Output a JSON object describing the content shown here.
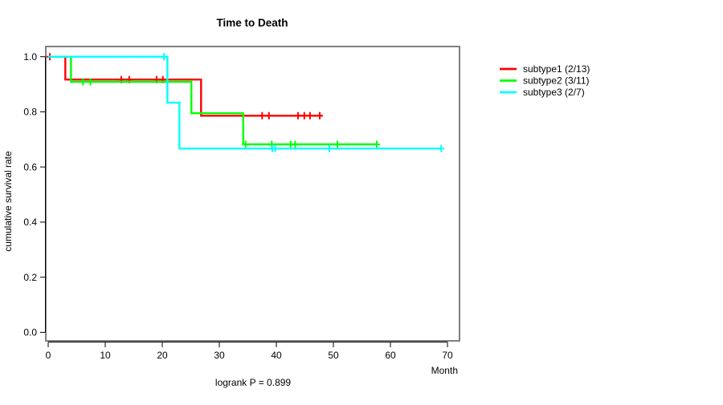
{
  "chart_data": {
    "type": "line",
    "subtype": "kaplan-meier-step",
    "title": "Time to Death",
    "ylabel": "cumulative survival rate",
    "xlabel": "Month",
    "annotation": "logrank P = 0.899",
    "xlim": [
      0,
      70
    ],
    "ylim": [
      0.0,
      1.0
    ],
    "x_ticks": [
      0,
      10,
      20,
      30,
      40,
      50,
      60,
      70
    ],
    "y_ticks": [
      0.0,
      0.2,
      0.4,
      0.6,
      0.8,
      1.0
    ],
    "grid": false,
    "legend_position": "right-outside-top",
    "box_color": "#808080",
    "axis_color": "#000000",
    "series": [
      {
        "name": "subtype1 (2/13)",
        "color": "#ff0000",
        "steps": [
          [
            0,
            1.0
          ],
          [
            3,
            1.0
          ],
          [
            3,
            0.917
          ],
          [
            26.8,
            0.917
          ],
          [
            26.8,
            0.786
          ],
          [
            48,
            0.786
          ]
        ],
        "censors": [
          [
            0.3,
            1.0
          ],
          [
            12.8,
            0.917
          ],
          [
            14.2,
            0.917
          ],
          [
            19.0,
            0.917
          ],
          [
            20.1,
            0.917
          ],
          [
            37.5,
            0.786
          ],
          [
            38.7,
            0.786
          ],
          [
            43.8,
            0.786
          ],
          [
            44.9,
            0.786
          ],
          [
            45.9,
            0.786
          ],
          [
            47.6,
            0.786
          ]
        ]
      },
      {
        "name": "subtype2 (3/11)",
        "color": "#00ff00",
        "steps": [
          [
            0,
            1.0
          ],
          [
            4,
            1.0
          ],
          [
            4,
            0.909
          ],
          [
            25.1,
            0.909
          ],
          [
            25.1,
            0.795
          ],
          [
            34.2,
            0.795
          ],
          [
            34.2,
            0.682
          ],
          [
            57.7,
            0.682
          ]
        ],
        "censors": [
          [
            6.1,
            0.909
          ],
          [
            7.4,
            0.909
          ],
          [
            34.6,
            0.682
          ],
          [
            39.2,
            0.682
          ],
          [
            42.5,
            0.682
          ],
          [
            43.3,
            0.682
          ],
          [
            50.7,
            0.682
          ],
          [
            57.6,
            0.682
          ]
        ]
      },
      {
        "name": "subtype3 (2/7)",
        "color": "#00ffff",
        "steps": [
          [
            0,
            1.0
          ],
          [
            20.9,
            1.0
          ],
          [
            20.9,
            0.833
          ],
          [
            23.0,
            0.833
          ],
          [
            23.0,
            0.667
          ],
          [
            68.9,
            0.667
          ]
        ],
        "censors": [
          [
            20.3,
            1.0
          ],
          [
            39.3,
            0.667
          ],
          [
            39.8,
            0.667
          ],
          [
            49.3,
            0.667
          ],
          [
            68.9,
            0.667
          ]
        ]
      }
    ]
  }
}
